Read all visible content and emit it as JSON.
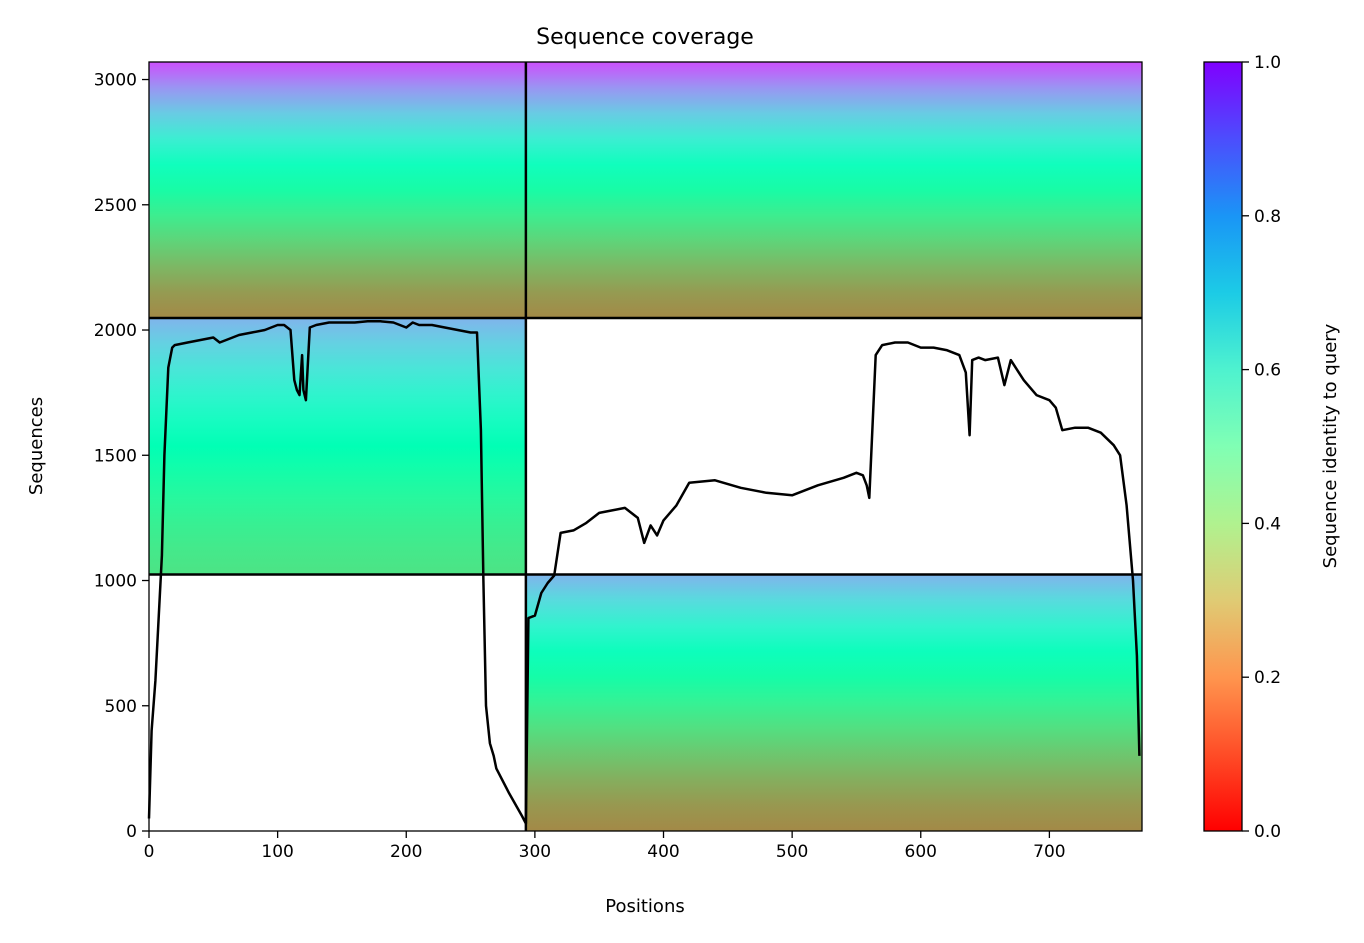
{
  "chart_data": {
    "type": "heatmap",
    "title": "Sequence coverage",
    "xlabel": "Positions",
    "ylabel": "Sequences",
    "xlim": [
      0,
      772
    ],
    "ylim": [
      0,
      3070
    ],
    "x_ticks": [
      0,
      100,
      200,
      300,
      400,
      500,
      600,
      700
    ],
    "y_ticks": [
      0,
      500,
      1000,
      1500,
      2000,
      2500,
      3000
    ],
    "colorbar": {
      "label": "Sequence identity to query",
      "range": [
        0.0,
        1.0
      ],
      "ticks": [
        "0.0",
        "0.2",
        "0.4",
        "0.6",
        "0.8",
        "1.0"
      ],
      "colormap": "rainbow_r"
    },
    "block_boundaries": {
      "x": [
        293
      ],
      "y": [
        1024,
        2048
      ]
    },
    "coverage_blocks": [
      {
        "name": "chain1-bottom-left",
        "x0": 0,
        "x1": 293,
        "y0": 0,
        "y1": 1024,
        "filled": false
      },
      {
        "name": "chain1-middle-left",
        "x0": 0,
        "x1": 293,
        "y0": 1024,
        "y1": 2048,
        "filled": true,
        "identity_bottom": 0.35,
        "identity_top": 0.75
      },
      {
        "name": "chain2-bottom-right",
        "x0": 293,
        "x1": 772,
        "y0": 0,
        "y1": 1024,
        "filled": true,
        "identity_bottom": 0.18,
        "identity_top": 0.75
      },
      {
        "name": "chain2-middle-right",
        "x0": 293,
        "x1": 772,
        "y0": 1024,
        "y1": 2048,
        "filled": false
      },
      {
        "name": "paired-top",
        "x0": 0,
        "x1": 772,
        "y0": 2048,
        "y1": 3070,
        "filled": true,
        "identity_bottom": 0.18,
        "identity_top": 0.9
      }
    ],
    "series": [
      {
        "type": "line",
        "x": [
          0,
          2,
          5,
          8,
          10,
          12,
          15,
          18,
          20,
          30,
          40,
          50,
          55,
          60,
          70,
          80,
          90,
          100,
          105,
          110,
          113,
          115,
          117,
          119,
          120,
          122,
          125,
          130,
          140,
          150,
          160,
          170,
          180,
          190,
          200,
          205,
          210,
          220,
          230,
          240,
          250,
          255,
          258,
          260,
          262,
          265,
          268,
          270,
          280,
          290,
          293,
          295,
          300,
          305,
          310,
          315,
          320,
          330,
          340,
          350,
          360,
          370,
          380,
          385,
          390,
          395,
          400,
          410,
          420,
          440,
          460,
          480,
          500,
          520,
          540,
          550,
          555,
          558,
          560,
          565,
          570,
          580,
          590,
          600,
          610,
          620,
          630,
          635,
          638,
          640,
          645,
          650,
          660,
          665,
          670,
          680,
          690,
          700,
          705,
          710,
          720,
          730,
          740,
          750,
          755,
          760,
          765,
          768,
          770
        ],
        "y": [
          50,
          400,
          600,
          900,
          1100,
          1500,
          1850,
          1930,
          1940,
          1950,
          1960,
          1970,
          1950,
          1960,
          1980,
          1990,
          2000,
          2020,
          2020,
          2000,
          1800,
          1760,
          1740,
          1900,
          1760,
          1720,
          2010,
          2020,
          2030,
          2030,
          2030,
          2035,
          2035,
          2030,
          2010,
          2030,
          2020,
          2020,
          2010,
          2000,
          1990,
          1990,
          1600,
          1000,
          500,
          350,
          300,
          250,
          150,
          60,
          30,
          850,
          860,
          950,
          990,
          1020,
          1190,
          1200,
          1230,
          1270,
          1280,
          1290,
          1250,
          1150,
          1220,
          1180,
          1240,
          1300,
          1390,
          1400,
          1370,
          1350,
          1340,
          1380,
          1410,
          1430,
          1420,
          1380,
          1330,
          1900,
          1940,
          1950,
          1950,
          1930,
          1930,
          1920,
          1900,
          1830,
          1580,
          1880,
          1890,
          1880,
          1890,
          1780,
          1880,
          1800,
          1740,
          1720,
          1690,
          1600,
          1610,
          1610,
          1590,
          1540,
          1500,
          1300,
          1000,
          700,
          300
        ]
      }
    ]
  }
}
